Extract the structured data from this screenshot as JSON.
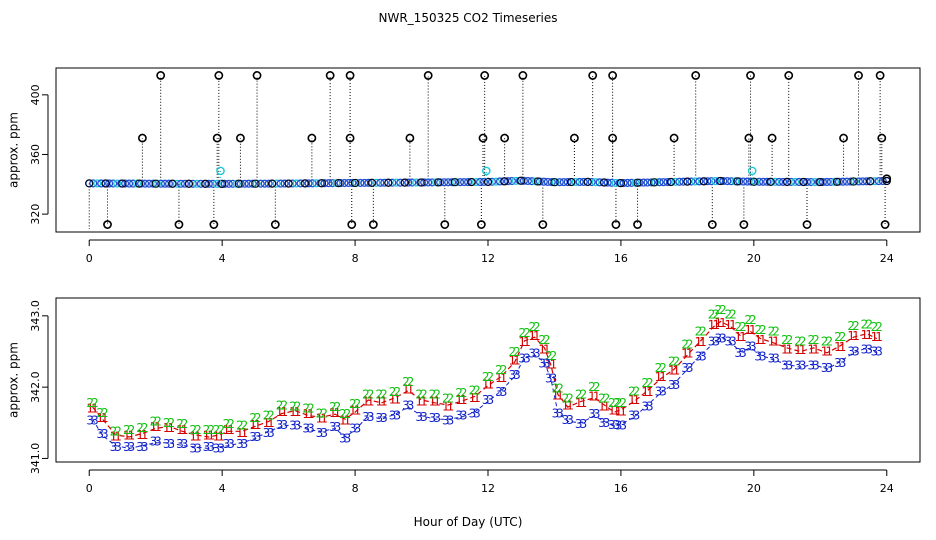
{
  "title": "NWR_150325  CO2 Timeseries",
  "xlabel": "Hour of Day (UTC)",
  "colors": {
    "marker": "#000000",
    "blue_points": "#1f4fd0",
    "cyan_points": "#1ac8d6",
    "series1": "#d40000",
    "series2": "#12c012",
    "series3": "#1020c8",
    "dashed": "#d40000"
  },
  "chart_data": [
    {
      "id": "top",
      "type": "scatter",
      "ylabel": "approx. ppm",
      "xlim": [
        -1,
        25
      ],
      "ylim": [
        308,
        418
      ],
      "xticks": [
        0,
        4,
        8,
        12,
        16,
        20,
        24
      ],
      "xtick_labels": [
        "0",
        "4",
        "8",
        "12",
        "16",
        "20",
        "24"
      ],
      "yticks": [
        320,
        360,
        400
      ],
      "ytick_labels": [
        "320",
        "360",
        "400"
      ],
      "baseline": [
        [
          0,
          340.6
        ],
        [
          2,
          340.4
        ],
        [
          4,
          340.3
        ],
        [
          6,
          340.5
        ],
        [
          8,
          340.9
        ],
        [
          10,
          341.2
        ],
        [
          12,
          341.6
        ],
        [
          13,
          342.4
        ],
        [
          14,
          341.4
        ],
        [
          15,
          341.6
        ],
        [
          16,
          340.8
        ],
        [
          18,
          341.8
        ],
        [
          19,
          342.2
        ],
        [
          20,
          341.7
        ],
        [
          22,
          341.5
        ],
        [
          24,
          342.2
        ]
      ],
      "high_spikes": [
        2.15,
        3.9,
        5.05,
        7.25,
        7.85,
        10.2,
        11.9,
        13.05,
        15.15,
        15.75,
        18.25,
        19.9,
        21.05,
        23.15,
        23.8
      ],
      "mid_spikes": [
        1.6,
        3.85,
        4.55,
        6.7,
        7.85,
        9.65,
        11.85,
        12.5,
        14.6,
        15.75,
        17.6,
        19.85,
        20.55,
        22.7,
        23.85
      ],
      "low_spikes": [
        0.55,
        2.7,
        3.75,
        5.6,
        7.9,
        8.55,
        10.7,
        11.8,
        13.65,
        15.85,
        16.5,
        18.75,
        19.7,
        21.6,
        23.95
      ],
      "cyan_spikes": [
        [
          3.95,
          349
        ],
        [
          11.95,
          349
        ],
        [
          19.95,
          349
        ]
      ],
      "high_value": 413,
      "mid_value": 371,
      "low_value": 313
    },
    {
      "id": "bottom",
      "type": "line",
      "ylabel": "approx. ppm",
      "xlim": [
        -1,
        25
      ],
      "ylim": [
        340.95,
        343.25
      ],
      "xticks": [
        0,
        4,
        8,
        12,
        16,
        20,
        24
      ],
      "xtick_labels": [
        "0",
        "4",
        "8",
        "12",
        "16",
        "20",
        "24"
      ],
      "yticks": [
        341.0,
        342.0,
        343.0
      ],
      "ytick_labels": [
        "341.0",
        "342.0",
        "343.0"
      ],
      "series": [
        {
          "name": "1",
          "points": [
            [
              0.1,
              341.72
            ],
            [
              0.4,
              341.55
            ],
            [
              0.8,
              341.33
            ],
            [
              1.2,
              341.3
            ],
            [
              1.6,
              341.35
            ],
            [
              2.0,
              341.42
            ],
            [
              2.4,
              341.45
            ],
            [
              2.8,
              341.38
            ],
            [
              3.2,
              341.33
            ],
            [
              3.6,
              341.3
            ],
            [
              3.9,
              341.33
            ],
            [
              4.2,
              341.38
            ],
            [
              4.6,
              341.38
            ],
            [
              5.0,
              341.45
            ],
            [
              5.4,
              341.52
            ],
            [
              5.8,
              341.63
            ],
            [
              6.2,
              341.67
            ],
            [
              6.6,
              341.6
            ],
            [
              7.0,
              341.58
            ],
            [
              7.4,
              341.62
            ],
            [
              7.7,
              341.55
            ],
            [
              8.0,
              341.65
            ],
            [
              8.4,
              341.82
            ],
            [
              8.8,
              341.78
            ],
            [
              9.2,
              341.85
            ],
            [
              9.6,
              341.95
            ],
            [
              10.0,
              341.82
            ],
            [
              10.4,
              341.78
            ],
            [
              10.8,
              341.75
            ],
            [
              11.2,
              341.8
            ],
            [
              11.6,
              341.87
            ],
            [
              12.0,
              342.02
            ],
            [
              12.4,
              342.15
            ],
            [
              12.8,
              342.35
            ],
            [
              13.1,
              342.65
            ],
            [
              13.4,
              342.7
            ],
            [
              13.7,
              342.55
            ],
            [
              13.9,
              342.3
            ],
            [
              14.1,
              341.9
            ],
            [
              14.4,
              341.72
            ],
            [
              14.8,
              341.8
            ],
            [
              15.2,
              341.85
            ],
            [
              15.5,
              341.75
            ],
            [
              15.8,
              341.65
            ],
            [
              16.0,
              341.68
            ],
            [
              16.4,
              341.8
            ],
            [
              16.8,
              341.95
            ],
            [
              17.2,
              342.12
            ],
            [
              17.6,
              342.25
            ],
            [
              18.0,
              342.45
            ],
            [
              18.4,
              342.65
            ],
            [
              18.8,
              342.85
            ],
            [
              19.0,
              342.92
            ],
            [
              19.3,
              342.85
            ],
            [
              19.6,
              342.72
            ],
            [
              19.9,
              342.78
            ],
            [
              20.2,
              342.68
            ],
            [
              20.6,
              342.62
            ],
            [
              21.0,
              342.55
            ],
            [
              21.4,
              342.5
            ],
            [
              21.8,
              342.55
            ],
            [
              22.2,
              342.48
            ],
            [
              22.6,
              342.58
            ],
            [
              23.0,
              342.7
            ],
            [
              23.4,
              342.75
            ],
            [
              23.7,
              342.68
            ]
          ]
        },
        {
          "name": "2",
          "points": [
            [
              0.1,
              341.8
            ],
            [
              0.4,
              341.62
            ],
            [
              0.8,
              341.4
            ],
            [
              1.2,
              341.38
            ],
            [
              1.6,
              341.45
            ],
            [
              2.0,
              341.5
            ],
            [
              2.4,
              341.52
            ],
            [
              2.8,
              341.46
            ],
            [
              3.2,
              341.42
            ],
            [
              3.6,
              341.38
            ],
            [
              3.9,
              341.42
            ],
            [
              4.2,
              341.46
            ],
            [
              4.6,
              341.48
            ],
            [
              5.0,
              341.55
            ],
            [
              5.4,
              341.62
            ],
            [
              5.8,
              341.72
            ],
            [
              6.2,
              341.75
            ],
            [
              6.6,
              341.68
            ],
            [
              7.0,
              341.65
            ],
            [
              7.4,
              341.7
            ],
            [
              7.7,
              341.64
            ],
            [
              8.0,
              341.74
            ],
            [
              8.4,
              341.92
            ],
            [
              8.8,
              341.88
            ],
            [
              9.2,
              341.95
            ],
            [
              9.6,
              342.05
            ],
            [
              10.0,
              341.92
            ],
            [
              10.4,
              341.88
            ],
            [
              10.8,
              341.86
            ],
            [
              11.2,
              341.9
            ],
            [
              11.6,
              341.97
            ],
            [
              12.0,
              342.12
            ],
            [
              12.4,
              342.26
            ],
            [
              12.8,
              342.47
            ],
            [
              13.1,
              342.78
            ],
            [
              13.4,
              342.82
            ],
            [
              13.7,
              342.68
            ],
            [
              13.9,
              342.42
            ],
            [
              14.1,
              342.0
            ],
            [
              14.4,
              341.82
            ],
            [
              14.8,
              341.92
            ],
            [
              15.2,
              341.98
            ],
            [
              15.5,
              341.86
            ],
            [
              15.8,
              341.76
            ],
            [
              16.0,
              341.8
            ],
            [
              16.4,
              341.92
            ],
            [
              16.8,
              342.08
            ],
            [
              17.2,
              342.25
            ],
            [
              17.6,
              342.38
            ],
            [
              18.0,
              342.58
            ],
            [
              18.4,
              342.8
            ],
            [
              18.8,
              343.0
            ],
            [
              19.0,
              343.1
            ],
            [
              19.3,
              343.0
            ],
            [
              19.6,
              342.86
            ],
            [
              19.9,
              342.92
            ],
            [
              20.2,
              342.82
            ],
            [
              20.6,
              342.76
            ],
            [
              21.0,
              342.68
            ],
            [
              21.4,
              342.62
            ],
            [
              21.8,
              342.68
            ],
            [
              22.2,
              342.62
            ],
            [
              22.6,
              342.72
            ],
            [
              23.0,
              342.84
            ],
            [
              23.4,
              342.9
            ],
            [
              23.7,
              342.82
            ]
          ]
        },
        {
          "name": "3",
          "points": [
            [
              0.1,
              341.55
            ],
            [
              0.4,
              341.32
            ],
            [
              0.8,
              341.18
            ],
            [
              1.2,
              341.14
            ],
            [
              1.6,
              341.18
            ],
            [
              2.0,
              341.22
            ],
            [
              2.4,
              341.22
            ],
            [
              2.8,
              341.18
            ],
            [
              3.2,
              341.16
            ],
            [
              3.6,
              341.14
            ],
            [
              3.9,
              341.16
            ],
            [
              4.2,
              341.18
            ],
            [
              4.6,
              341.22
            ],
            [
              5.0,
              341.28
            ],
            [
              5.4,
              341.38
            ],
            [
              5.8,
              341.45
            ],
            [
              6.2,
              341.48
            ],
            [
              6.6,
              341.4
            ],
            [
              7.0,
              341.38
            ],
            [
              7.4,
              341.42
            ],
            [
              7.7,
              341.3
            ],
            [
              8.0,
              341.4
            ],
            [
              8.4,
              341.6
            ],
            [
              8.8,
              341.55
            ],
            [
              9.2,
              341.62
            ],
            [
              9.6,
              341.72
            ],
            [
              10.0,
              341.6
            ],
            [
              10.4,
              341.55
            ],
            [
              10.8,
              341.55
            ],
            [
              11.2,
              341.58
            ],
            [
              11.6,
              341.65
            ],
            [
              12.0,
              341.8
            ],
            [
              12.4,
              341.95
            ],
            [
              12.8,
              342.15
            ],
            [
              13.1,
              342.42
            ],
            [
              13.4,
              342.45
            ],
            [
              13.7,
              342.35
            ],
            [
              13.9,
              342.1
            ],
            [
              14.1,
              341.65
            ],
            [
              14.4,
              341.52
            ],
            [
              14.8,
              341.5
            ],
            [
              15.2,
              341.6
            ],
            [
              15.5,
              341.52
            ],
            [
              15.8,
              341.45
            ],
            [
              16.0,
              341.48
            ],
            [
              16.4,
              341.58
            ],
            [
              16.8,
              341.75
            ],
            [
              17.2,
              341.92
            ],
            [
              17.6,
              342.05
            ],
            [
              18.0,
              342.25
            ],
            [
              18.4,
              342.45
            ],
            [
              18.8,
              342.62
            ],
            [
              19.0,
              342.7
            ],
            [
              19.3,
              342.62
            ],
            [
              19.6,
              342.5
            ],
            [
              19.9,
              342.55
            ],
            [
              20.2,
              342.45
            ],
            [
              20.6,
              342.38
            ],
            [
              21.0,
              342.32
            ],
            [
              21.4,
              342.28
            ],
            [
              21.8,
              342.32
            ],
            [
              22.2,
              342.25
            ],
            [
              22.6,
              342.36
            ],
            [
              23.0,
              342.48
            ],
            [
              23.4,
              342.55
            ],
            [
              23.7,
              342.48
            ]
          ]
        }
      ]
    }
  ]
}
